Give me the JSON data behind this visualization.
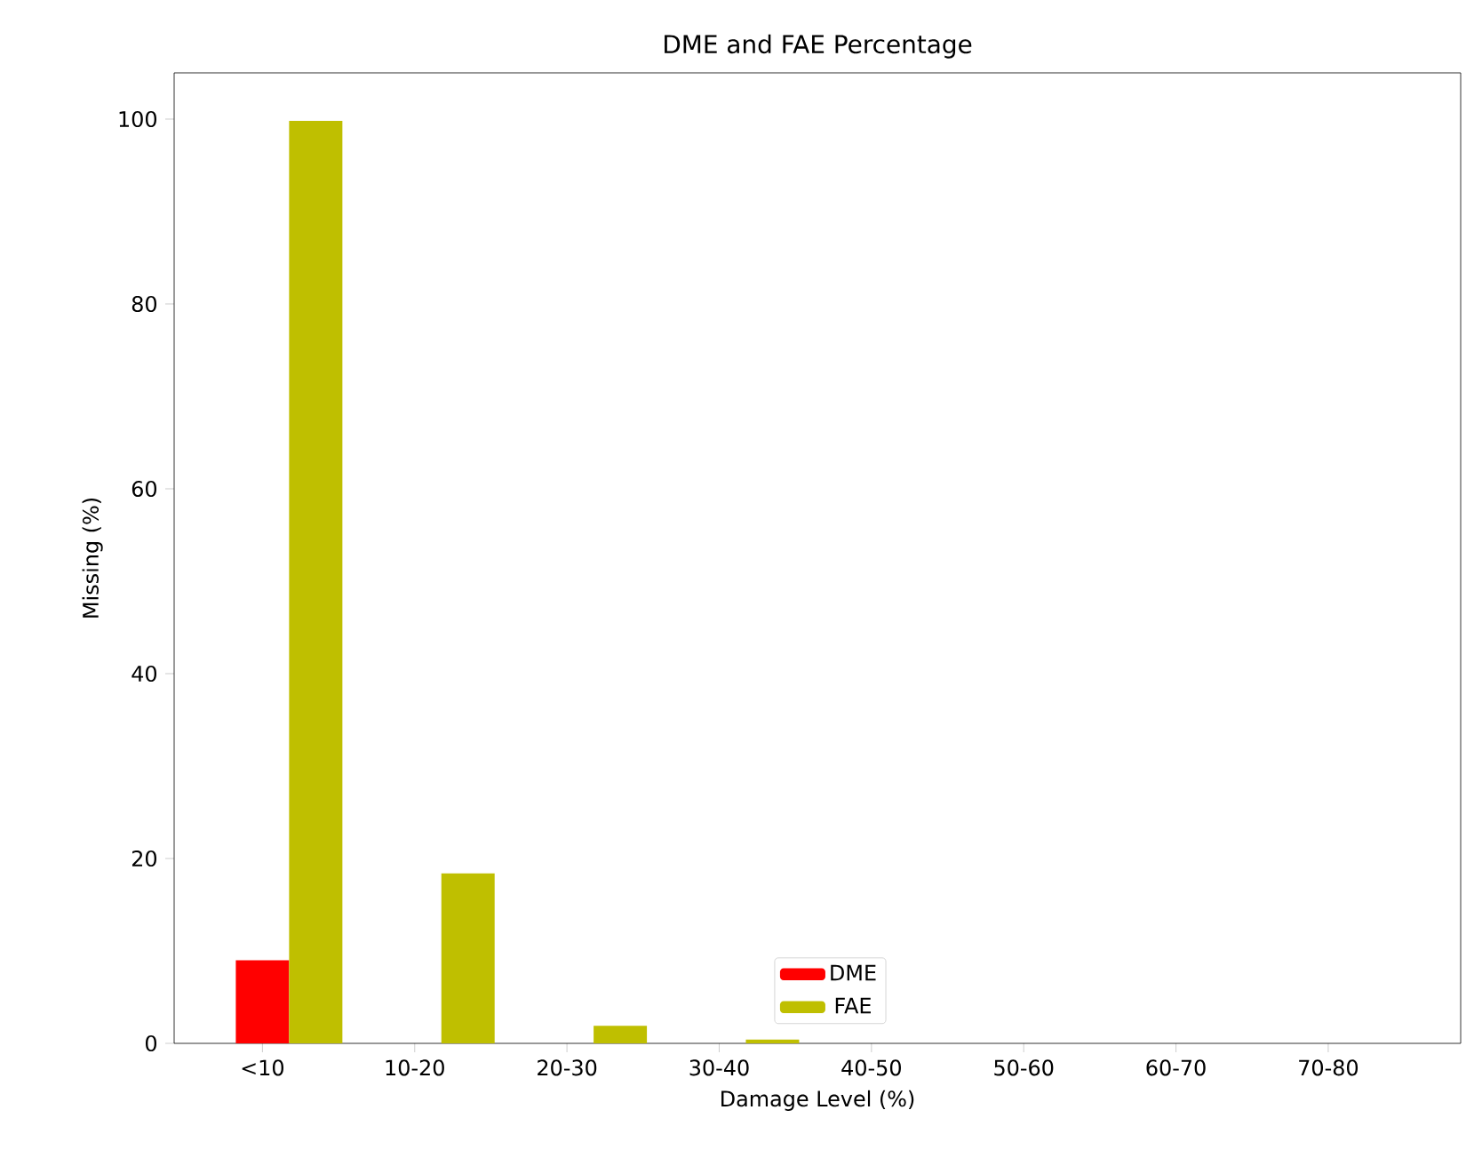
{
  "chart_data": {
    "type": "bar",
    "title": "DME and FAE Percentage",
    "xlabel": "Damage Level (%)",
    "ylabel": "Missing (%)",
    "categories": [
      "<10",
      "10-20",
      "20-30",
      "30-40",
      "40-50",
      "50-60",
      "60-70",
      "70-80"
    ],
    "series": [
      {
        "name": "DME",
        "color": "#ff0000",
        "values": [
          9,
          0,
          0,
          0,
          0,
          0,
          0,
          0
        ]
      },
      {
        "name": "FAE",
        "color": "#bfbf00",
        "values": [
          99.8,
          18.4,
          1.9,
          0.4,
          0,
          0,
          0,
          0
        ]
      }
    ],
    "ylim": [
      0,
      105
    ],
    "yticks": [
      0,
      20,
      40,
      60,
      80,
      100
    ],
    "legend": "bottom",
    "grid": false
  }
}
